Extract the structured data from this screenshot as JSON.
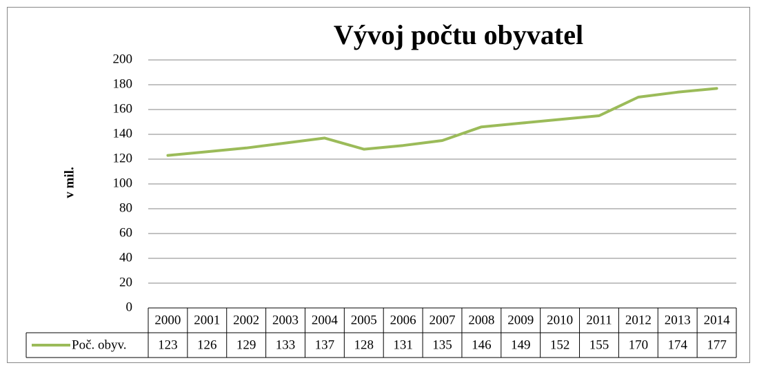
{
  "chart_data": {
    "type": "line",
    "title": "Vývoj počtu obyvatel",
    "y_label": "v mil.",
    "categories": [
      "2000",
      "2001",
      "2002",
      "2003",
      "2004",
      "2005",
      "2006",
      "2007",
      "2008",
      "2009",
      "2010",
      "2011",
      "2012",
      "2013",
      "2014"
    ],
    "series": [
      {
        "name": "Poč. obyv.",
        "color": "#9bbb59",
        "values": [
          123,
          126,
          129,
          133,
          137,
          128,
          131,
          135,
          146,
          149,
          152,
          155,
          170,
          174,
          177
        ]
      }
    ],
    "ylim": [
      0,
      200
    ],
    "yticks": [
      0,
      20,
      40,
      60,
      80,
      100,
      120,
      140,
      160,
      180,
      200
    ],
    "grid": true
  }
}
